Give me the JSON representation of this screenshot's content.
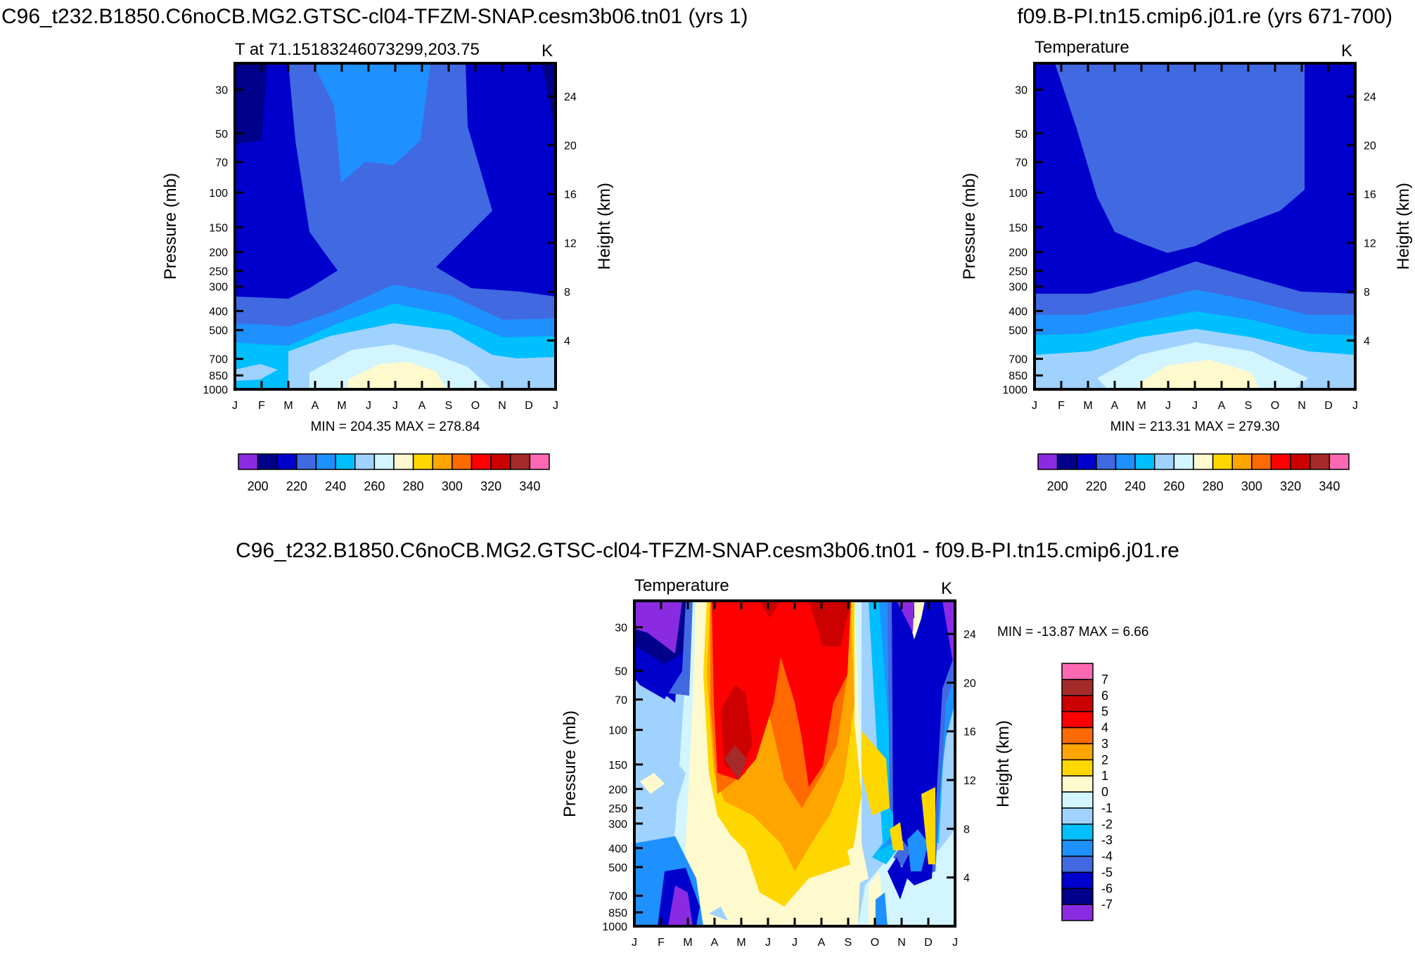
{
  "figure": {
    "panel1_title": "C96_t232.B1850.C6noCB.MG2.GTSC-cl04-TFZM-SNAP.cesm3b06.tn01 (yrs 1)",
    "panel2_title": "f09.B-PI.tn15.cmip6.j01.re (yrs 671-700)",
    "diff_title": "C96_t232.B1850.C6noCB.MG2.GTSC-cl04-TFZM-SNAP.cesm3b06.tn01 - f09.B-PI.tn15.cmip6.j01.re"
  },
  "chart_data": [
    {
      "type": "heatmap",
      "id": "panel1",
      "title": "T at 71.15183246073299,203.75",
      "units": "K",
      "xlabel": "",
      "ylabel": "Pressure (mb)",
      "y2label": "Height (km)",
      "x_ticks": [
        "J",
        "F",
        "M",
        "A",
        "M",
        "J",
        "J",
        "A",
        "S",
        "O",
        "N",
        "D",
        "J"
      ],
      "y_ticks": [
        30,
        50,
        70,
        100,
        150,
        200,
        250,
        300,
        400,
        500,
        700,
        850,
        1000
      ],
      "y2_ticks": [
        24,
        20,
        16,
        12,
        8,
        4
      ],
      "y_scale": "log",
      "ylim": [
        1000,
        22
      ],
      "stats": "MIN = 204.35 MAX = 278.84",
      "contour_levels": [
        200,
        210,
        220,
        230,
        240,
        250,
        260,
        270,
        280,
        290,
        300,
        310,
        320,
        330,
        340
      ],
      "colorbar_labels": [
        "200",
        "220",
        "240",
        "260",
        "280",
        "300",
        "320",
        "340"
      ],
      "colorbar_colors": [
        "#8a2be2",
        "#00008b",
        "#0000cd",
        "#4169e1",
        "#1e90ff",
        "#00bfff",
        "#a0d2ff",
        "#d2f5ff",
        "#fffacd",
        "#ffd700",
        "#ffa500",
        "#ff6a00",
        "#ff0000",
        "#cd0000",
        "#a52a2a",
        "#ff69b4"
      ]
    },
    {
      "type": "heatmap",
      "id": "panel2",
      "title": "Temperature",
      "units": "K",
      "xlabel": "",
      "ylabel": "Pressure (mb)",
      "y2label": "Height (km)",
      "x_ticks": [
        "J",
        "F",
        "M",
        "A",
        "M",
        "J",
        "J",
        "A",
        "S",
        "O",
        "N",
        "D",
        "J"
      ],
      "y_ticks": [
        30,
        50,
        70,
        100,
        150,
        200,
        250,
        300,
        400,
        500,
        700,
        850,
        1000
      ],
      "y2_ticks": [
        24,
        20,
        16,
        12,
        8,
        4
      ],
      "y_scale": "log",
      "ylim": [
        1000,
        22
      ],
      "stats": "MIN = 213.31 MAX = 279.30",
      "contour_levels": [
        200,
        210,
        220,
        230,
        240,
        250,
        260,
        270,
        280,
        290,
        300,
        310,
        320,
        330,
        340
      ],
      "colorbar_labels": [
        "200",
        "220",
        "240",
        "260",
        "280",
        "300",
        "320",
        "340"
      ],
      "colorbar_colors": [
        "#8a2be2",
        "#00008b",
        "#0000cd",
        "#4169e1",
        "#1e90ff",
        "#00bfff",
        "#a0d2ff",
        "#d2f5ff",
        "#fffacd",
        "#ffd700",
        "#ffa500",
        "#ff6a00",
        "#ff0000",
        "#cd0000",
        "#a52a2a",
        "#ff69b4"
      ]
    },
    {
      "type": "heatmap",
      "id": "diff",
      "title": "Temperature",
      "units": "K",
      "xlabel": "",
      "ylabel": "Pressure (mb)",
      "y2label": "Height (km)",
      "x_ticks": [
        "J",
        "F",
        "M",
        "A",
        "M",
        "J",
        "J",
        "A",
        "S",
        "O",
        "N",
        "D",
        "J"
      ],
      "y_ticks": [
        30,
        50,
        70,
        100,
        150,
        200,
        250,
        300,
        400,
        500,
        700,
        850,
        1000
      ],
      "y2_ticks": [
        24,
        20,
        16,
        12,
        8,
        4
      ],
      "y_scale": "log",
      "ylim": [
        1000,
        22
      ],
      "stats": "MIN = -13.87 MAX =   6.66",
      "contour_levels": [
        -7,
        -6,
        -5,
        -4,
        -3,
        -2,
        -1,
        0,
        1,
        2,
        3,
        4,
        5,
        6,
        7
      ],
      "colorbar_labels": [
        "7",
        "6",
        "5",
        "4",
        "3",
        "2",
        "1",
        "0",
        "-1",
        "-2",
        "-3",
        "-4",
        "-5",
        "-6",
        "-7"
      ],
      "colorbar_colors": [
        "#ff69b4",
        "#a52a2a",
        "#cd0000",
        "#ff0000",
        "#ff6a00",
        "#ffa500",
        "#ffd700",
        "#fffacd",
        "#d2f5ff",
        "#a0d2ff",
        "#00bfff",
        "#1e90ff",
        "#4169e1",
        "#0000cd",
        "#00008b",
        "#8a2be2"
      ]
    }
  ]
}
